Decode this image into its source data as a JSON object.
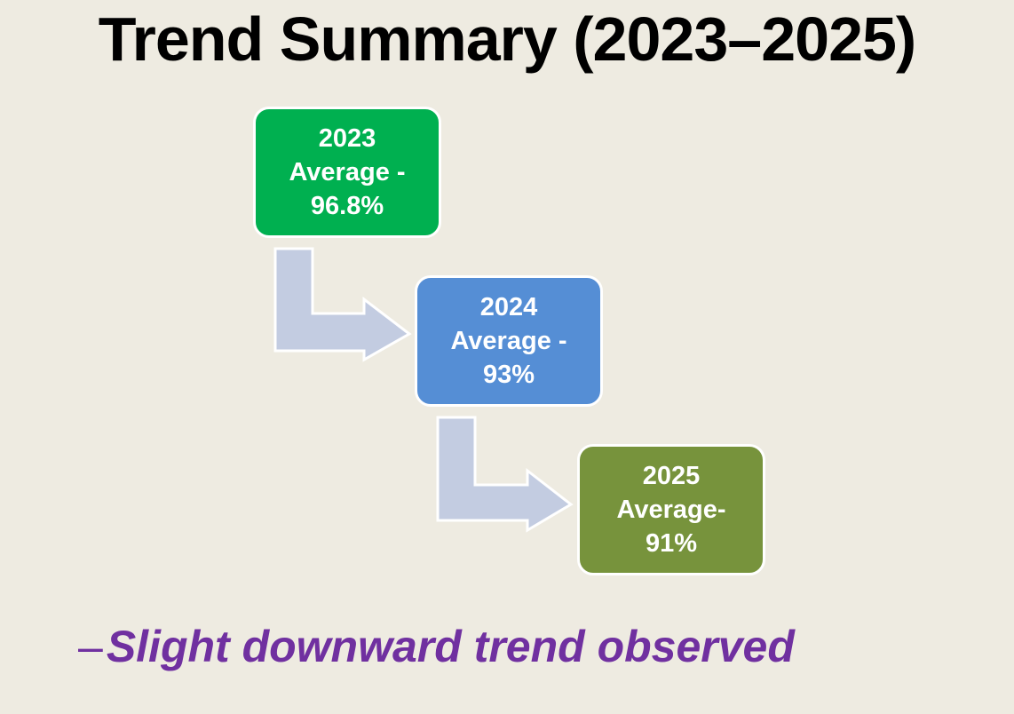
{
  "title": "Trend Summary (2023–2025)",
  "colors": {
    "background": "#EEEBE1",
    "arrow_fill": "#C3CCE1",
    "conclusion_text": "#7030A0"
  },
  "steps": [
    {
      "year": "2023",
      "label": "Average -",
      "value": "96.8%",
      "color": "#00B050"
    },
    {
      "year": "2024",
      "label": "Average -",
      "value": "93%",
      "color": "#558ED5"
    },
    {
      "year": "2025",
      "label": "Average-",
      "value": "91%",
      "color": "#77933C"
    }
  ],
  "conclusion": {
    "bullet": "–",
    "text": "Slight downward trend observed"
  }
}
